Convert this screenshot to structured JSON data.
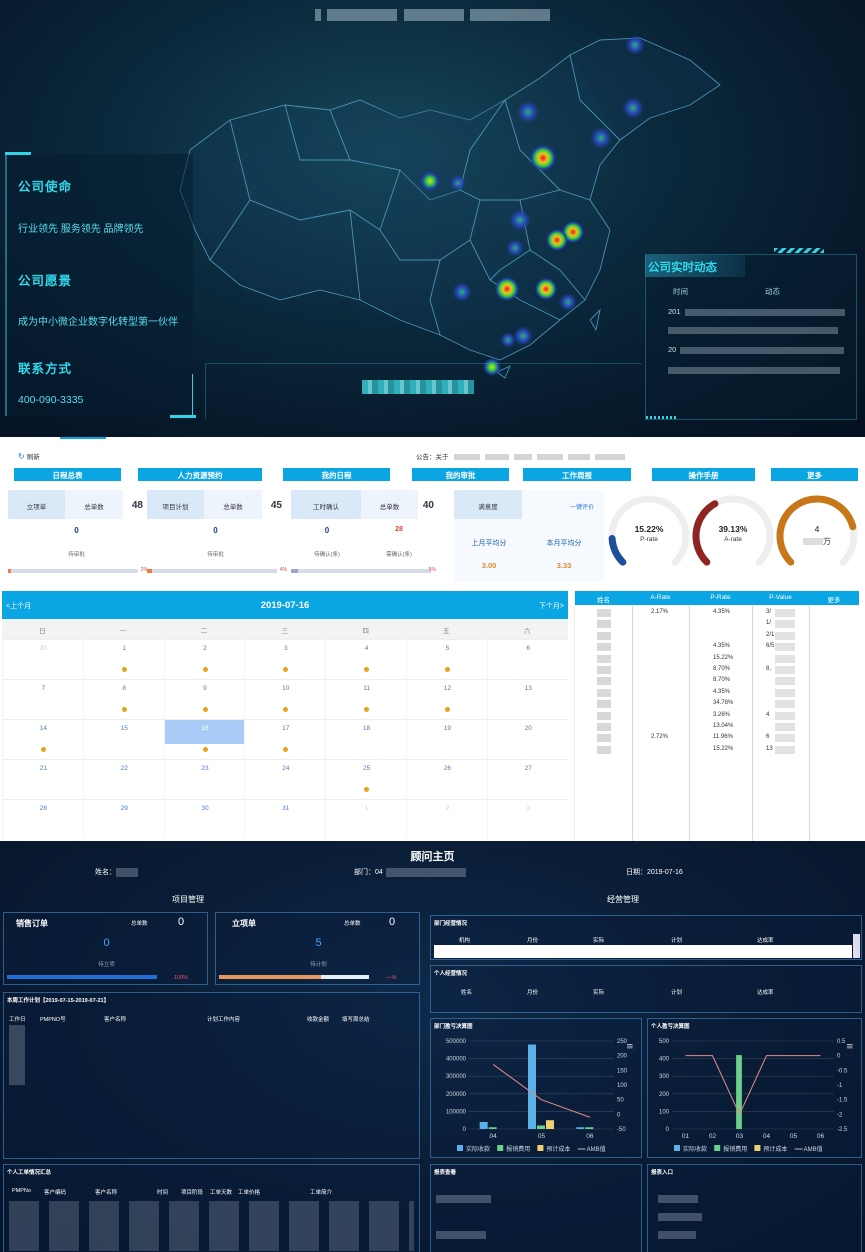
{
  "map_section": {
    "company_mission_title": "公司使命",
    "company_mission_text": "行业领先 服务领先 品牌领先",
    "company_vision_title": "公司愿景",
    "company_vision_text": "成为中小微企业数字化转型第一伙伴",
    "contact_title": "联系方式",
    "contact_phone": "400-090-3335",
    "news_title": "公司实时动态",
    "news_col_time": "时间",
    "news_col_event": "动态",
    "news_rows": [
      {
        "time": "201"
      },
      {
        "time": "20"
      }
    ],
    "heat_color_hot": "#e8172b",
    "heat_color_mid": "#3ad23a",
    "heat_color_cool": "#1f3fa8"
  },
  "dashboard": {
    "refresh_label": "刷新",
    "notice_label": "公告：关于",
    "tabs": [
      "日程总表",
      "人力资源预约",
      "我的日程",
      "我的审批",
      "工作周报",
      "操作手册",
      "更多"
    ],
    "cards": [
      {
        "sub_a": "立项单",
        "sub_b": "总单数",
        "total": "48",
        "count": "0",
        "label": "待审批",
        "pct": "2%",
        "progress": 2
      },
      {
        "sub_a": "项目计划",
        "sub_b": "总单数",
        "total": "45",
        "count": "0",
        "label": "待审批",
        "pct": "4%",
        "progress": 4
      },
      {
        "sub_a": "工时确认",
        "sub_b": "总单数",
        "total": "40",
        "count_a": "0",
        "count_b": "28",
        "label_a": "待确认(条)",
        "label_b": "需确认(条)",
        "pct": "5%",
        "progress": 5
      }
    ],
    "satisfaction": {
      "label": "满意度",
      "rate_link": "一键评价",
      "last_month_label": "上月平均分",
      "last_month_value": "3.00",
      "this_month_label": "本月平均分",
      "this_month_value": "3.33"
    },
    "gauges": [
      {
        "value": "15.22%",
        "label": "P-rate",
        "fraction": 0.1522,
        "color": "#1e4f9a"
      },
      {
        "value": "39.13%",
        "label": "A-rate",
        "fraction": 0.3913,
        "color": "#8f2424"
      },
      {
        "value": "4",
        "label": "万",
        "fraction": 0.78,
        "color": "#c77618"
      }
    ],
    "calendar": {
      "prev_label": "<上个月",
      "next_label": "下个月>",
      "current_date": "2019-07-16",
      "weekdays": [
        "日",
        "一",
        "二",
        "三",
        "四",
        "五",
        "六"
      ],
      "weeks": [
        [
          {
            "d": "30",
            "o": true
          },
          {
            "d": "1",
            "dot": true
          },
          {
            "d": "2",
            "dot": true
          },
          {
            "d": "3",
            "dot": true
          },
          {
            "d": "4",
            "dot": true
          },
          {
            "d": "5",
            "dot": true
          },
          {
            "d": "6"
          }
        ],
        [
          {
            "d": "7"
          },
          {
            "d": "8",
            "dot": true
          },
          {
            "d": "9",
            "dot": true
          },
          {
            "d": "10",
            "dot": true
          },
          {
            "d": "11",
            "dot": true
          },
          {
            "d": "12",
            "dot": true
          },
          {
            "d": "13"
          }
        ],
        [
          {
            "d": "14",
            "dot": true
          },
          {
            "d": "15"
          },
          {
            "d": "16",
            "dot": true,
            "sel": true
          },
          {
            "d": "17",
            "dot": true
          },
          {
            "d": "18"
          },
          {
            "d": "19"
          },
          {
            "d": "20"
          }
        ],
        [
          {
            "d": "21"
          },
          {
            "d": "22"
          },
          {
            "d": "23"
          },
          {
            "d": "24"
          },
          {
            "d": "25",
            "dot": true
          },
          {
            "d": "26"
          },
          {
            "d": "27"
          }
        ],
        [
          {
            "d": "28"
          },
          {
            "d": "29"
          },
          {
            "d": "30"
          },
          {
            "d": "31"
          },
          {
            "d": "1",
            "o": true
          },
          {
            "d": "2",
            "o": true
          },
          {
            "d": "3",
            "o": true
          }
        ]
      ],
      "selected_color": "#a8ccf5"
    },
    "rate_table": {
      "headers": [
        "姓名",
        "A-Rate",
        "P-Rate",
        "P-Value",
        "更多"
      ],
      "a_rate": [
        {
          "v": "2.17%",
          "r": 0
        },
        {
          "v": "2.72%",
          "r": 11
        }
      ],
      "p_rate": [
        {
          "v": "4.35%",
          "r": 0
        },
        {
          "v": "4.35%",
          "r": 3
        },
        {
          "v": "15.22%",
          "r": 4
        },
        {
          "v": "8.70%",
          "r": 5
        },
        {
          "v": "8.70%",
          "r": 6
        },
        {
          "v": "4.35%",
          "r": 7
        },
        {
          "v": "34.78%",
          "r": 8
        },
        {
          "v": "3.26%",
          "r": 9
        },
        {
          "v": "13.04%",
          "r": 10
        },
        {
          "v": "11.96%",
          "r": 11
        },
        {
          "v": "15.22%",
          "r": 12
        }
      ],
      "p_value": [
        {
          "v": "3/",
          "r": 0
        },
        {
          "v": "1/",
          "r": 1
        },
        {
          "v": "2/1",
          "r": 2
        },
        {
          "v": "6/5",
          "r": 3
        },
        {
          "v": "8,",
          "r": 5
        },
        {
          "v": "4",
          "r": 9
        },
        {
          "v": "6",
          "r": 11
        },
        {
          "v": "13",
          "r": 12
        }
      ]
    }
  },
  "consultant": {
    "title": "顾问主页",
    "name_label": "姓名：",
    "dept_label": "部门：04",
    "date_label": "日期：",
    "date_value": "2019-07-16",
    "project_section": "项目管理",
    "business_section": "经营管理",
    "sales_order": {
      "title": "销售订单",
      "total_label": "总单数",
      "total": "0",
      "count": "0",
      "label": "待立项",
      "pct": "100%",
      "progress": 100
    },
    "project_order": {
      "title": "立项单",
      "total_label": "总单数",
      "total": "0",
      "count": "5",
      "label": "待计划",
      "pct": "—%",
      "progress": 68
    },
    "week_plan_title": "本周工作计划【2019-07-15-2019-07-21】",
    "week_plan_cols": [
      "工作日",
      "PMPNO号",
      "客户名称",
      "计划工作内容",
      "收款金额",
      "填写周总结"
    ],
    "personal_ticket_title": "个人工单情况汇总",
    "personal_ticket_cols": [
      "PMPNo",
      "客户编码",
      "客户名称",
      "时间",
      "项目阶段",
      "工单天数",
      "工单价格",
      "工单简介"
    ],
    "dept_business_title": "部门经营情况",
    "dept_business_cols": [
      "机构",
      "月份",
      "实际",
      "计划",
      "达成率"
    ],
    "personal_business_title": "个人经营情况",
    "personal_business_cols": [
      "姓名",
      "月份",
      "实际",
      "计划",
      "达成率"
    ],
    "report_query_title": "报表查看",
    "report_entry_title": "报表入口",
    "dept_pl_title": "部门盈亏决算图",
    "personal_pl_title": "个人盈亏决算图"
  },
  "chart_data": [
    {
      "type": "bar",
      "title": "部门盈亏决算图",
      "categories": [
        "04",
        "05",
        "06"
      ],
      "series": [
        {
          "name": "实际收款",
          "values": [
            40000,
            480000,
            10000
          ]
        },
        {
          "name": "报销费用",
          "values": [
            10000,
            20000,
            10000
          ]
        },
        {
          "name": "预计成本",
          "values": [
            0,
            50000,
            0
          ]
        },
        {
          "name": "AMB值",
          "values": [
            170,
            50,
            -10
          ],
          "line": true
        }
      ],
      "ylim": [
        0,
        500000
      ],
      "y_ticks": [
        "0",
        "100000",
        "200000",
        "300000",
        "400000",
        "500000"
      ],
      "y2_ticks": [
        "-50",
        "0",
        "50",
        "100",
        "150",
        "200",
        "250"
      ],
      "legend": "bottom"
    },
    {
      "type": "bar",
      "title": "个人盈亏决算图",
      "categories": [
        "01",
        "02",
        "03",
        "04",
        "05",
        "06"
      ],
      "series": [
        {
          "name": "实际收款",
          "values": [
            0,
            0,
            0,
            0,
            0,
            0
          ]
        },
        {
          "name": "报销费用",
          "values": [
            0,
            0,
            420,
            0,
            0,
            0
          ]
        },
        {
          "name": "预计成本",
          "values": [
            0,
            0,
            0,
            0,
            0,
            0
          ]
        },
        {
          "name": "AMB值",
          "values": [
            0,
            0,
            -2,
            0,
            0,
            0
          ],
          "line": true
        }
      ],
      "y_ticks": [
        "0",
        "100",
        "200",
        "300",
        "400",
        "500"
      ],
      "y2_ticks": [
        "-2.5",
        "-2",
        "-1.5",
        "-1",
        "-0.5",
        "0",
        "0.5"
      ],
      "legend": "bottom"
    }
  ]
}
